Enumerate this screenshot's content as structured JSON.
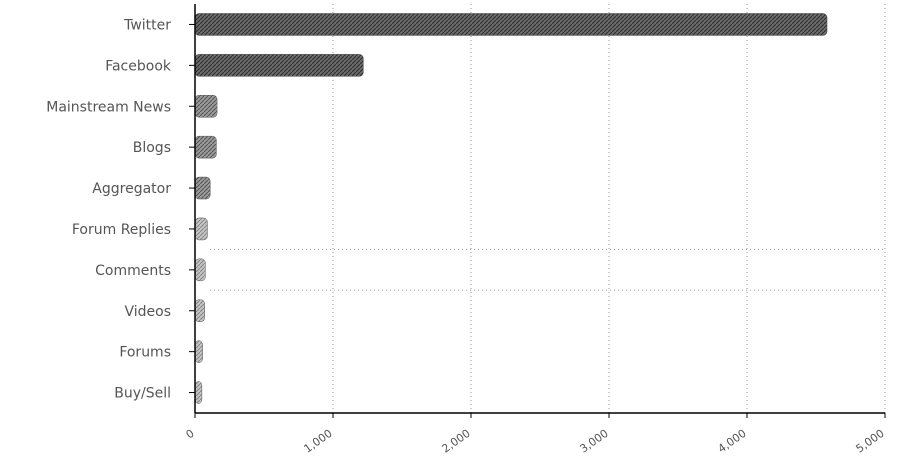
{
  "chart_data": {
    "type": "bar",
    "orientation": "horizontal",
    "title": "",
    "xlabel": "",
    "ylabel": "",
    "categories": [
      "Twitter",
      "Facebook",
      "Mainstream News",
      "Blogs",
      "Aggregator",
      "Forum Replies",
      "Comments",
      "Videos",
      "Forums",
      "Buy/Sell"
    ],
    "values": [
      4580,
      1220,
      160,
      155,
      110,
      90,
      75,
      70,
      55,
      50
    ],
    "x_ticks": [
      "0",
      "1,000",
      "2,000",
      "3,000",
      "4,000",
      "5,000"
    ],
    "xlim": [
      0,
      5000
    ],
    "grid": true,
    "legend": "none",
    "colors": {
      "bar_dark": "#5f5f5f",
      "bar_mid": "#8c8c8c",
      "bar_light": "#b3b3b3",
      "axis": "#000000",
      "grid": "#9a9a9a",
      "text": "#555555"
    }
  }
}
